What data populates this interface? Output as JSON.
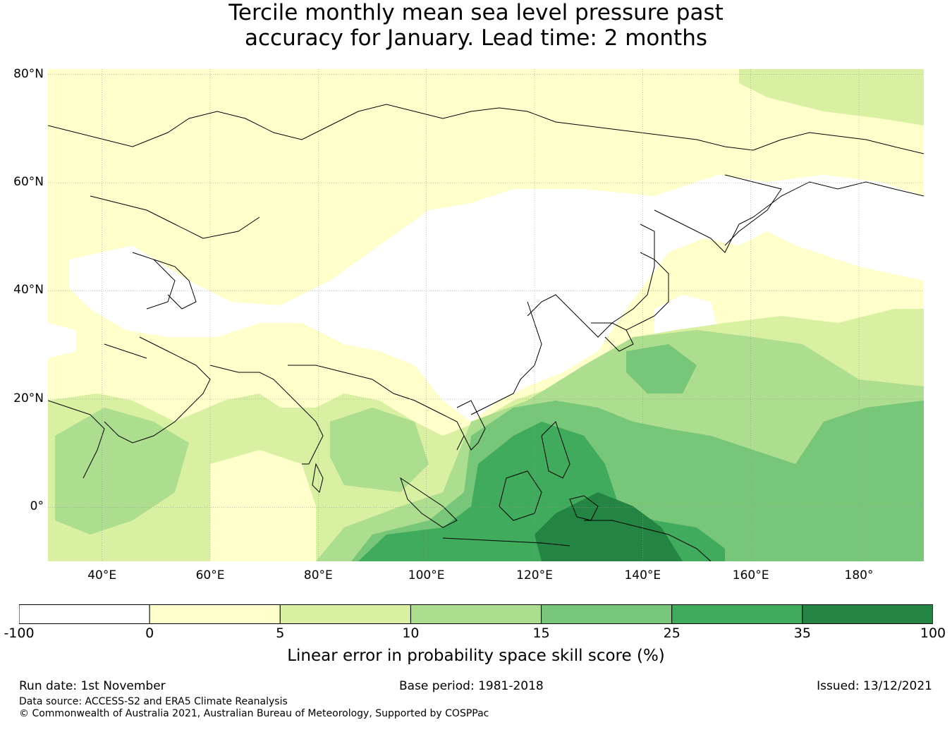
{
  "title": {
    "line1": "Tercile monthly mean sea level pressure past",
    "line2": "accuracy for January. Lead time: 2 months"
  },
  "map": {
    "lon_range": [
      30,
      192
    ],
    "lat_range": [
      -10,
      81
    ],
    "lat_ticks": [
      {
        "value": 80,
        "label": "80°N"
      },
      {
        "value": 60,
        "label": "60°N"
      },
      {
        "value": 40,
        "label": "40°N"
      },
      {
        "value": 20,
        "label": "20°N"
      },
      {
        "value": 0,
        "label": "0°"
      }
    ],
    "lon_ticks": [
      {
        "value": 40,
        "label": "40°E"
      },
      {
        "value": 60,
        "label": "60°E"
      },
      {
        "value": 80,
        "label": "80°E"
      },
      {
        "value": 100,
        "label": "100°E"
      },
      {
        "value": 120,
        "label": "120°E"
      },
      {
        "value": 140,
        "label": "140°E"
      },
      {
        "value": 160,
        "label": "160°E"
      },
      {
        "value": 180,
        "label": "180°"
      }
    ]
  },
  "colorbar": {
    "label": "Linear error in probability space skill score (%)",
    "bins": [
      {
        "from": -100,
        "to": 0,
        "color": "#ffffff"
      },
      {
        "from": 0,
        "to": 5,
        "color": "#ffffcc"
      },
      {
        "from": 5,
        "to": 10,
        "color": "#d9f0a3"
      },
      {
        "from": 10,
        "to": 15,
        "color": "#addd8e"
      },
      {
        "from": 15,
        "to": 25,
        "color": "#78c679"
      },
      {
        "from": 25,
        "to": 35,
        "color": "#41ab5d"
      },
      {
        "from": 35,
        "to": 100,
        "color": "#238443"
      }
    ],
    "ticks": [
      "-100",
      "0",
      "5",
      "10",
      "15",
      "25",
      "35",
      "100"
    ]
  },
  "footer": {
    "run_date": "Run date: 1st November",
    "base_period": "Base period: 1981-2018",
    "issued": "Issued: 13/12/2021",
    "data_source": "Data source: ACCESS-S2 and ERA5 Climate Reanalysis",
    "copyright": "© Commonwealth of Australia 2021, Australian Bureau of Meteorology, Supported by COSPPac"
  }
}
